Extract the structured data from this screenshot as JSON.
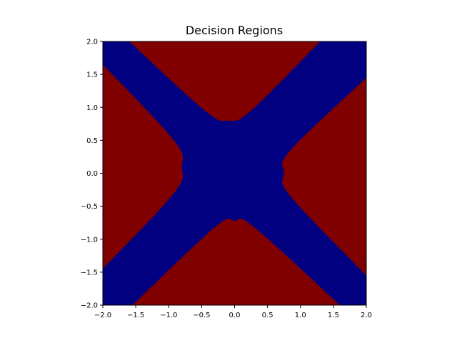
{
  "chart_data": {
    "type": "heatmap",
    "title": "Decision Regions",
    "xlabel": "",
    "ylabel": "",
    "xlim": [
      -2.0,
      2.0
    ],
    "ylim": [
      -2.0,
      2.0
    ],
    "x_ticks": [
      "−2.0",
      "−1.5",
      "−1.0",
      "−0.5",
      "0.0",
      "0.5",
      "1.0",
      "1.5",
      "2.0"
    ],
    "y_ticks": [
      "−2.0",
      "−1.5",
      "−1.0",
      "−0.5",
      "0.0",
      "0.5",
      "1.0",
      "1.5",
      "2.0"
    ],
    "grid": false,
    "legend": "none",
    "colors": {
      "class_a": "#000080",
      "class_b": "#800000"
    },
    "regions": [
      {
        "class": "class_b",
        "location": "top",
        "boundary_apex": [
          -0.1,
          0.8
        ]
      },
      {
        "class": "class_b",
        "location": "bottom",
        "boundary_apex": [
          0.0,
          -0.72
        ]
      },
      {
        "class": "class_b",
        "location": "left",
        "boundary_apex": [
          -0.8,
          0.1
        ]
      },
      {
        "class": "class_b",
        "location": "right",
        "boundary_apex": [
          0.75,
          0.0
        ]
      },
      {
        "class": "class_a",
        "location": "center-cross",
        "boundary_apex": [
          0.0,
          0.0
        ]
      }
    ]
  }
}
